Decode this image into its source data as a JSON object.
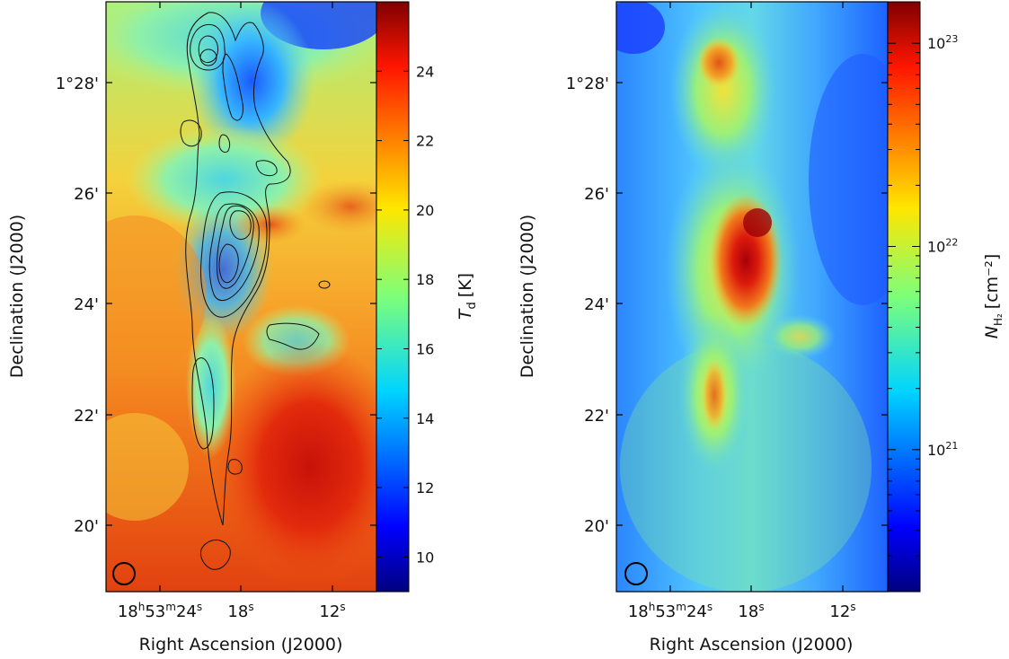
{
  "chart_data": [
    {
      "type": "heatmap",
      "panel": "left",
      "xlabel": "Right Ascension (J2000)",
      "ylabel": "Declination (J2000)",
      "x_ticks": [
        {
          "h": "18",
          "m": "53",
          "s": "24"
        },
        {
          "s": "18"
        },
        {
          "s": "12"
        }
      ],
      "y_ticks": [
        "1°28'",
        "26'",
        "24'",
        "22'",
        "20'"
      ],
      "colorbar": {
        "label_main": "T",
        "label_sub": "d",
        "label_unit": "[K]",
        "scale": "linear",
        "range": [
          9,
          26
        ],
        "ticks": [
          "10",
          "12",
          "14",
          "16",
          "18",
          "20",
          "22",
          "24"
        ]
      },
      "map_description_values": {
        "min_temperature_K": 9,
        "max_temperature_K": 26
      },
      "contours": true,
      "beam_marker": true
    },
    {
      "type": "heatmap",
      "panel": "right",
      "xlabel": "Right Ascension (J2000)",
      "ylabel": "Declination (J2000)",
      "x_ticks": [
        {
          "h": "18",
          "m": "53",
          "s": "24"
        },
        {
          "s": "18"
        },
        {
          "s": "12"
        }
      ],
      "y_ticks": [
        "1°28'",
        "26'",
        "24'",
        "22'",
        "20'"
      ],
      "colorbar": {
        "label_main": "N",
        "label_sub": "H₂",
        "label_unit": "[cm⁻²]",
        "scale": "log",
        "range": [
          2e+20,
          1.6e+23
        ],
        "ticks": [
          {
            "base": "10",
            "exp": "23"
          },
          {
            "base": "10",
            "exp": "22"
          },
          {
            "base": "10",
            "exp": "21"
          }
        ]
      },
      "contours": true,
      "beam_marker": true
    }
  ]
}
